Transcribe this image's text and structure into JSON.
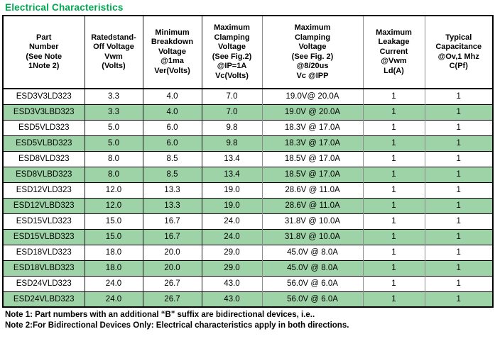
{
  "title": "Electrical Characteristics",
  "colors": {
    "title_green": "#00A651",
    "row_highlight_green": "#9ED3A7",
    "border_black": "#000000",
    "border_gray": "#8C8C8C"
  },
  "table": {
    "headers": [
      "Part\nNumber\n(See Note\n1Note 2)",
      "Ratedstand-\nOff Voltage\nVwm\n(Volts)",
      "Minimum\nBreakdown\nVoltage\n@1ma\nVer(Volts)",
      "Maximum\nClamping\nVoltage\n(See Fig.2)\n@IP=1A\nVc(Volts)",
      "Maximum\nClamping\nVoltage\n(See Fig. 2)\n@8/20us\nVc @IPP",
      "Maximum\nLeakage\nCurrent\n@Vwm\nLd(A)",
      "Typical\nCapacitance\n@Ov,1 Mhz\nC(Pf)"
    ],
    "rows": [
      {
        "cells": [
          "ESD3V3LD323",
          "3.3",
          "4.0",
          "7.0",
          "19.0V@ 20.0A",
          "1",
          "1"
        ],
        "highlighted": false
      },
      {
        "cells": [
          "ESD3V3LBD323",
          "3.3",
          "4.0",
          "7.0",
          "19.0V @ 20.0A",
          "1",
          "1"
        ],
        "highlighted": true
      },
      {
        "cells": [
          "ESD5VLD323",
          "5.0",
          "6.0",
          "9.8",
          "18.3V @ 17.0A",
          "1",
          "1"
        ],
        "highlighted": false
      },
      {
        "cells": [
          "ESD5VLBD323",
          "5.0",
          "6.0",
          "9.8",
          "18.3V @ 17.0A",
          "1",
          "1"
        ],
        "highlighted": true
      },
      {
        "cells": [
          "ESD8VLD323",
          "8.0",
          "8.5",
          "13.4",
          "18.5V @ 17.0A",
          "1",
          "1"
        ],
        "highlighted": false
      },
      {
        "cells": [
          "ESD8VLBD323",
          "8.0",
          "8.5",
          "13.4",
          "18.5V @ 17.0A",
          "1",
          "1"
        ],
        "highlighted": true
      },
      {
        "cells": [
          "ESD12VLD323",
          "12.0",
          "13.3",
          "19.0",
          "28.6V @ 11.0A",
          "1",
          "1"
        ],
        "highlighted": false
      },
      {
        "cells": [
          "ESD12VLBD323",
          "12.0",
          "13.3",
          "19.0",
          "28.6V @ 11.0A",
          "1",
          "1"
        ],
        "highlighted": true
      },
      {
        "cells": [
          "ESD15VLD323",
          "15.0",
          "16.7",
          "24.0",
          "31.8V @ 10.0A",
          "1",
          "1"
        ],
        "highlighted": false
      },
      {
        "cells": [
          "ESD15VLBD323",
          "15.0",
          "16.7",
          "24.0",
          "31.8V @ 10.0A",
          "1",
          "1"
        ],
        "highlighted": true
      },
      {
        "cells": [
          "ESD18VLD323",
          "18.0",
          "20.0",
          "29.0",
          "45.0V @ 8.0A",
          "1",
          "1"
        ],
        "highlighted": false
      },
      {
        "cells": [
          "ESD18VLBD323",
          "18.0",
          "20.0",
          "29.0",
          "45.0V @ 8.0A",
          "1",
          "1"
        ],
        "highlighted": true
      },
      {
        "cells": [
          "ESD24VLD323",
          "24.0",
          "26.7",
          "43.0",
          "56.0V @ 6.0A",
          "1",
          "1"
        ],
        "highlighted": false
      },
      {
        "cells": [
          "ESD24VLBD323",
          "24.0",
          "26.7",
          "43.0",
          "56.0V @ 6.0A",
          "1",
          "1"
        ],
        "highlighted": true
      }
    ]
  },
  "notes": [
    "Note 1: Part numbers with an additional “B\" suffix are bidirectional devices, i.e..",
    "Note 2:For Bidirectional Devices Only: Electrical characteristics apply in both directions."
  ]
}
